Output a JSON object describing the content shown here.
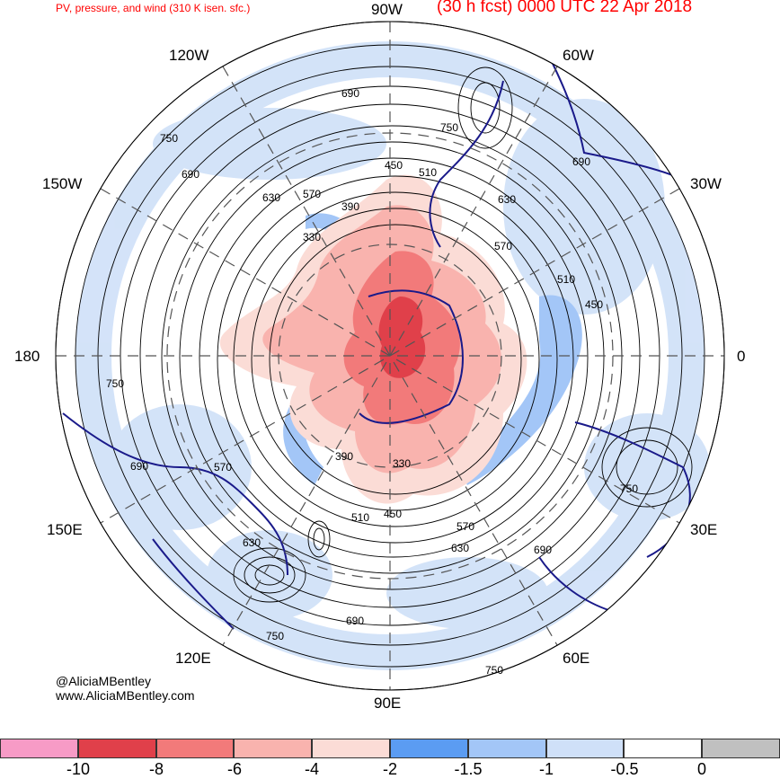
{
  "title": {
    "left": "PV, pressure, and wind (310 K isen. sfc.)",
    "right": "(30 h fcst) 0000 UTC 22 Apr 2018"
  },
  "longitude_labels": {
    "n90w": "90W",
    "n120w": "120W",
    "n60w": "60W",
    "n150w": "150W",
    "n30w": "30W",
    "n180": "180",
    "n0": "0",
    "n150e": "150E",
    "n30e": "30E",
    "n120e": "120E",
    "n60e": "60E",
    "n90e": "90E"
  },
  "credits": {
    "handle": "@AliciaMBentley",
    "site": "www.AliciaMBentley.com"
  },
  "contour_labels": [
    "690",
    "750",
    "690",
    "750",
    "630",
    "570",
    "510",
    "450",
    "390",
    "330",
    "630",
    "570",
    "690",
    "450",
    "510",
    "750",
    "690",
    "570",
    "390",
    "330",
    "450",
    "510",
    "570",
    "630",
    "690",
    "690",
    "750",
    "630",
    "750",
    "750"
  ],
  "colorbar": {
    "swatches": [
      "#f79bc6",
      "#e0404a",
      "#f27a7a",
      "#f9b3ae",
      "#fbdcd6",
      "#5b9cf2",
      "#a3c6f7",
      "#cfe0f8",
      "#ffffff",
      "#c0c0c0"
    ],
    "ticks": [
      "-10",
      "-8",
      "-6",
      "-4",
      "-2",
      "-1.5",
      "-1",
      "-0.5",
      "0"
    ]
  },
  "colors": {
    "title": "#ff0000",
    "coastline": "#1a1a8a",
    "contour": "#000000"
  }
}
